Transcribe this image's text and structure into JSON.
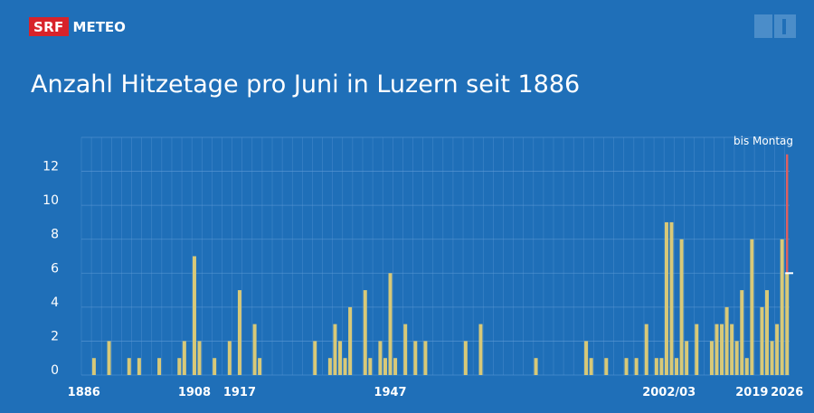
{
  "header": {
    "logo_srf": "SRF",
    "logo_meteo": "METEO",
    "channel_badge": "SRF 1"
  },
  "title": "Anzahl Hitzetage pro Juni in Luzern seit 1886",
  "colors": {
    "background": "#1f6fb8",
    "bar": "#d8c978",
    "highlight": "#e06060",
    "grid": "#5e9ad6"
  },
  "chart_data": {
    "type": "bar",
    "title": "Anzahl Hitzetage pro Juni in Luzern seit 1886",
    "xlabel": "",
    "ylabel": "",
    "ylim": [
      0,
      14
    ],
    "yticks": [
      0,
      2,
      4,
      6,
      8,
      10,
      12
    ],
    "grid": true,
    "x_tick_labels": [
      "1886",
      "1908",
      "1917",
      "1947",
      "2002/03",
      "2019",
      "2026"
    ],
    "annotation": "bis Montag",
    "series": [
      {
        "values": [
          {
            "year": 1888,
            "value": 1
          },
          {
            "year": 1891,
            "value": 2
          },
          {
            "year": 1895,
            "value": 1
          },
          {
            "year": 1897,
            "value": 1
          },
          {
            "year": 1901,
            "value": 1
          },
          {
            "year": 1905,
            "value": 1
          },
          {
            "year": 1906,
            "value": 2
          },
          {
            "year": 1908,
            "value": 7
          },
          {
            "year": 1909,
            "value": 2
          },
          {
            "year": 1912,
            "value": 1
          },
          {
            "year": 1915,
            "value": 2
          },
          {
            "year": 1917,
            "value": 5
          },
          {
            "year": 1920,
            "value": 3
          },
          {
            "year": 1921,
            "value": 1
          },
          {
            "year": 1932,
            "value": 2
          },
          {
            "year": 1935,
            "value": 1
          },
          {
            "year": 1936,
            "value": 3
          },
          {
            "year": 1937,
            "value": 2
          },
          {
            "year": 1938,
            "value": 1
          },
          {
            "year": 1939,
            "value": 4
          },
          {
            "year": 1942,
            "value": 5
          },
          {
            "year": 1943,
            "value": 1
          },
          {
            "year": 1945,
            "value": 2
          },
          {
            "year": 1946,
            "value": 1
          },
          {
            "year": 1947,
            "value": 6
          },
          {
            "year": 1948,
            "value": 1
          },
          {
            "year": 1950,
            "value": 3
          },
          {
            "year": 1952,
            "value": 2
          },
          {
            "year": 1954,
            "value": 2
          },
          {
            "year": 1962,
            "value": 2
          },
          {
            "year": 1965,
            "value": 3
          },
          {
            "year": 1976,
            "value": 1
          },
          {
            "year": 1986,
            "value": 2
          },
          {
            "year": 1987,
            "value": 1
          },
          {
            "year": 1990,
            "value": 1
          },
          {
            "year": 1994,
            "value": 1
          },
          {
            "year": 1996,
            "value": 1
          },
          {
            "year": 1998,
            "value": 3
          },
          {
            "year": 2000,
            "value": 1
          },
          {
            "year": 2001,
            "value": 1
          },
          {
            "year": 2002,
            "value": 9
          },
          {
            "year": 2003,
            "value": 9
          },
          {
            "year": 2004,
            "value": 1
          },
          {
            "year": 2005,
            "value": 8
          },
          {
            "year": 2006,
            "value": 2
          },
          {
            "year": 2008,
            "value": 3
          },
          {
            "year": 2011,
            "value": 2
          },
          {
            "year": 2012,
            "value": 3
          },
          {
            "year": 2013,
            "value": 3
          },
          {
            "year": 2014,
            "value": 4
          },
          {
            "year": 2015,
            "value": 3
          },
          {
            "year": 2016,
            "value": 2
          },
          {
            "year": 2017,
            "value": 5
          },
          {
            "year": 2018,
            "value": 1
          },
          {
            "year": 2019,
            "value": 8
          },
          {
            "year": 2021,
            "value": 4
          },
          {
            "year": 2022,
            "value": 5
          },
          {
            "year": 2023,
            "value": 2
          },
          {
            "year": 2024,
            "value": 3
          },
          {
            "year": 2025,
            "value": 8
          },
          {
            "year": 2026,
            "value": 6
          }
        ]
      }
    ],
    "current_year": 2026,
    "current_value": 6,
    "current_projection_value": 13,
    "year_range": [
      1886,
      2026
    ]
  }
}
